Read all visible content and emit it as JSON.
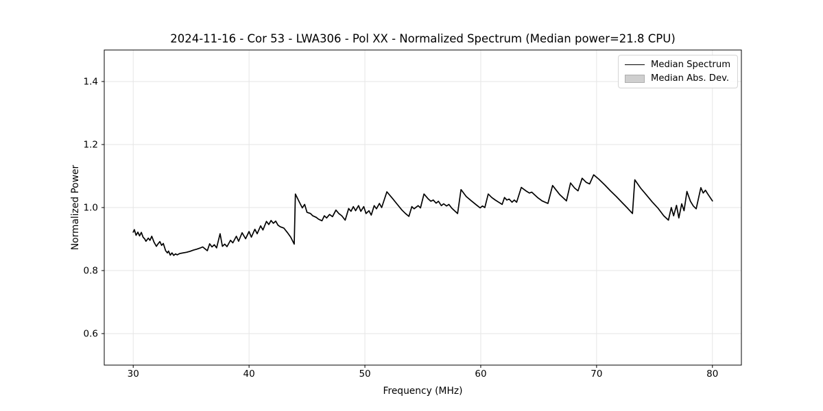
{
  "chart_data": {
    "type": "line",
    "title": "2024-11-16 - Cor 53 - LWA306 - Pol XX - Normalized Spectrum (Median power=21.8 CPU)",
    "xlabel": "Frequency (MHz)",
    "ylabel": "Normalized Power",
    "xlim": [
      27.5,
      82.5
    ],
    "ylim": [
      0.5,
      1.5
    ],
    "xticks": [
      30,
      40,
      50,
      60,
      70,
      80
    ],
    "yticks": [
      0.6,
      0.8,
      1.0,
      1.2,
      1.4
    ],
    "grid": true,
    "grid_color": "#e5e5e5",
    "line_color": "#000000",
    "band_color": "#cfcfcf",
    "mad_band_halfwidth": 0.002,
    "legend": {
      "position": "upper right",
      "entries": [
        {
          "label": "Median Spectrum",
          "type": "line",
          "color": "#000000"
        },
        {
          "label": "Median Abs. Dev.",
          "type": "patch",
          "color": "#cfcfcf"
        }
      ]
    },
    "series": [
      {
        "name": "Median Spectrum",
        "points": [
          [
            30.0,
            0.922
          ],
          [
            30.1,
            0.93
          ],
          [
            30.25,
            0.912
          ],
          [
            30.4,
            0.922
          ],
          [
            30.55,
            0.91
          ],
          [
            30.7,
            0.921
          ],
          [
            30.85,
            0.906
          ],
          [
            31.0,
            0.9
          ],
          [
            31.1,
            0.893
          ],
          [
            31.3,
            0.903
          ],
          [
            31.45,
            0.896
          ],
          [
            31.6,
            0.909
          ],
          [
            31.8,
            0.89
          ],
          [
            32.0,
            0.877
          ],
          [
            32.15,
            0.885
          ],
          [
            32.3,
            0.892
          ],
          [
            32.45,
            0.88
          ],
          [
            32.6,
            0.886
          ],
          [
            32.8,
            0.863
          ],
          [
            32.95,
            0.856
          ],
          [
            33.05,
            0.862
          ],
          [
            33.2,
            0.849
          ],
          [
            33.35,
            0.856
          ],
          [
            33.5,
            0.848
          ],
          [
            33.65,
            0.853
          ],
          [
            33.8,
            0.85
          ],
          [
            34.0,
            0.854
          ],
          [
            34.3,
            0.856
          ],
          [
            34.6,
            0.858
          ],
          [
            34.9,
            0.861
          ],
          [
            35.2,
            0.865
          ],
          [
            35.5,
            0.868
          ],
          [
            35.8,
            0.872
          ],
          [
            36.0,
            0.875
          ],
          [
            36.2,
            0.869
          ],
          [
            36.4,
            0.863
          ],
          [
            36.6,
            0.885
          ],
          [
            36.8,
            0.875
          ],
          [
            37.0,
            0.882
          ],
          [
            37.2,
            0.872
          ],
          [
            37.5,
            0.917
          ],
          [
            37.7,
            0.877
          ],
          [
            37.9,
            0.884
          ],
          [
            38.1,
            0.876
          ],
          [
            38.4,
            0.896
          ],
          [
            38.6,
            0.888
          ],
          [
            38.9,
            0.909
          ],
          [
            39.1,
            0.893
          ],
          [
            39.4,
            0.92
          ],
          [
            39.7,
            0.901
          ],
          [
            40.0,
            0.924
          ],
          [
            40.2,
            0.906
          ],
          [
            40.5,
            0.931
          ],
          [
            40.7,
            0.917
          ],
          [
            41.0,
            0.942
          ],
          [
            41.2,
            0.929
          ],
          [
            41.5,
            0.956
          ],
          [
            41.7,
            0.946
          ],
          [
            41.9,
            0.959
          ],
          [
            42.1,
            0.95
          ],
          [
            42.3,
            0.957
          ],
          [
            42.5,
            0.944
          ],
          [
            42.7,
            0.939
          ],
          [
            43.0,
            0.935
          ],
          [
            43.3,
            0.921
          ],
          [
            43.6,
            0.906
          ],
          [
            43.9,
            0.884
          ],
          [
            44.0,
            1.043
          ],
          [
            44.35,
            1.017
          ],
          [
            44.6,
            0.999
          ],
          [
            44.8,
            1.01
          ],
          [
            45.0,
            0.985
          ],
          [
            45.3,
            0.981
          ],
          [
            45.5,
            0.974
          ],
          [
            45.8,
            0.969
          ],
          [
            46.0,
            0.963
          ],
          [
            46.3,
            0.958
          ],
          [
            46.5,
            0.974
          ],
          [
            46.7,
            0.967
          ],
          [
            46.95,
            0.978
          ],
          [
            47.2,
            0.971
          ],
          [
            47.5,
            0.992
          ],
          [
            47.75,
            0.981
          ],
          [
            48.0,
            0.974
          ],
          [
            48.3,
            0.96
          ],
          [
            48.6,
            0.997
          ],
          [
            48.8,
            0.988
          ],
          [
            49.0,
            1.003
          ],
          [
            49.2,
            0.99
          ],
          [
            49.45,
            1.006
          ],
          [
            49.65,
            0.988
          ],
          [
            49.9,
            1.003
          ],
          [
            50.1,
            0.981
          ],
          [
            50.35,
            0.99
          ],
          [
            50.55,
            0.976
          ],
          [
            50.8,
            1.006
          ],
          [
            51.0,
            0.996
          ],
          [
            51.25,
            1.013
          ],
          [
            51.45,
            1.0
          ],
          [
            51.9,
            1.05
          ],
          [
            52.4,
            1.028
          ],
          [
            52.8,
            1.01
          ],
          [
            53.2,
            0.992
          ],
          [
            53.5,
            0.981
          ],
          [
            53.8,
            0.972
          ],
          [
            54.05,
            1.003
          ],
          [
            54.25,
            0.996
          ],
          [
            54.6,
            1.006
          ],
          [
            54.8,
            0.999
          ],
          [
            55.1,
            1.043
          ],
          [
            55.45,
            1.028
          ],
          [
            55.7,
            1.02
          ],
          [
            55.9,
            1.024
          ],
          [
            56.15,
            1.014
          ],
          [
            56.35,
            1.02
          ],
          [
            56.6,
            1.006
          ],
          [
            56.8,
            1.012
          ],
          [
            57.05,
            1.005
          ],
          [
            57.25,
            1.01
          ],
          [
            57.5,
            0.998
          ],
          [
            58.0,
            0.981
          ],
          [
            58.3,
            1.057
          ],
          [
            58.75,
            1.035
          ],
          [
            59.2,
            1.021
          ],
          [
            59.7,
            1.006
          ],
          [
            59.95,
            0.999
          ],
          [
            60.15,
            1.005
          ],
          [
            60.35,
            1.0
          ],
          [
            60.65,
            1.043
          ],
          [
            60.95,
            1.032
          ],
          [
            61.25,
            1.024
          ],
          [
            61.55,
            1.017
          ],
          [
            61.85,
            1.01
          ],
          [
            62.05,
            1.032
          ],
          [
            62.25,
            1.024
          ],
          [
            62.45,
            1.027
          ],
          [
            62.7,
            1.017
          ],
          [
            62.9,
            1.024
          ],
          [
            63.1,
            1.017
          ],
          [
            63.5,
            1.064
          ],
          [
            63.9,
            1.053
          ],
          [
            64.2,
            1.046
          ],
          [
            64.4,
            1.049
          ],
          [
            64.9,
            1.032
          ],
          [
            65.3,
            1.021
          ],
          [
            65.8,
            1.013
          ],
          [
            66.2,
            1.07
          ],
          [
            66.8,
            1.042
          ],
          [
            67.4,
            1.021
          ],
          [
            67.75,
            1.078
          ],
          [
            68.1,
            1.062
          ],
          [
            68.4,
            1.053
          ],
          [
            68.75,
            1.093
          ],
          [
            69.1,
            1.08
          ],
          [
            69.4,
            1.075
          ],
          [
            69.75,
            1.104
          ],
          [
            70.2,
            1.09
          ],
          [
            70.7,
            1.072
          ],
          [
            71.2,
            1.053
          ],
          [
            71.7,
            1.035
          ],
          [
            72.2,
            1.016
          ],
          [
            72.7,
            0.997
          ],
          [
            73.1,
            0.981
          ],
          [
            73.3,
            1.088
          ],
          [
            73.8,
            1.062
          ],
          [
            74.3,
            1.04
          ],
          [
            74.8,
            1.018
          ],
          [
            75.3,
            0.998
          ],
          [
            75.8,
            0.974
          ],
          [
            76.2,
            0.96
          ],
          [
            76.45,
            1.0
          ],
          [
            76.65,
            0.974
          ],
          [
            76.9,
            1.007
          ],
          [
            77.1,
            0.967
          ],
          [
            77.35,
            1.012
          ],
          [
            77.55,
            0.99
          ],
          [
            77.8,
            1.051
          ],
          [
            78.1,
            1.02
          ],
          [
            78.35,
            1.005
          ],
          [
            78.6,
            0.996
          ],
          [
            79.0,
            1.063
          ],
          [
            79.2,
            1.046
          ],
          [
            79.4,
            1.055
          ],
          [
            79.6,
            1.043
          ],
          [
            80.0,
            1.021
          ]
        ]
      }
    ]
  }
}
